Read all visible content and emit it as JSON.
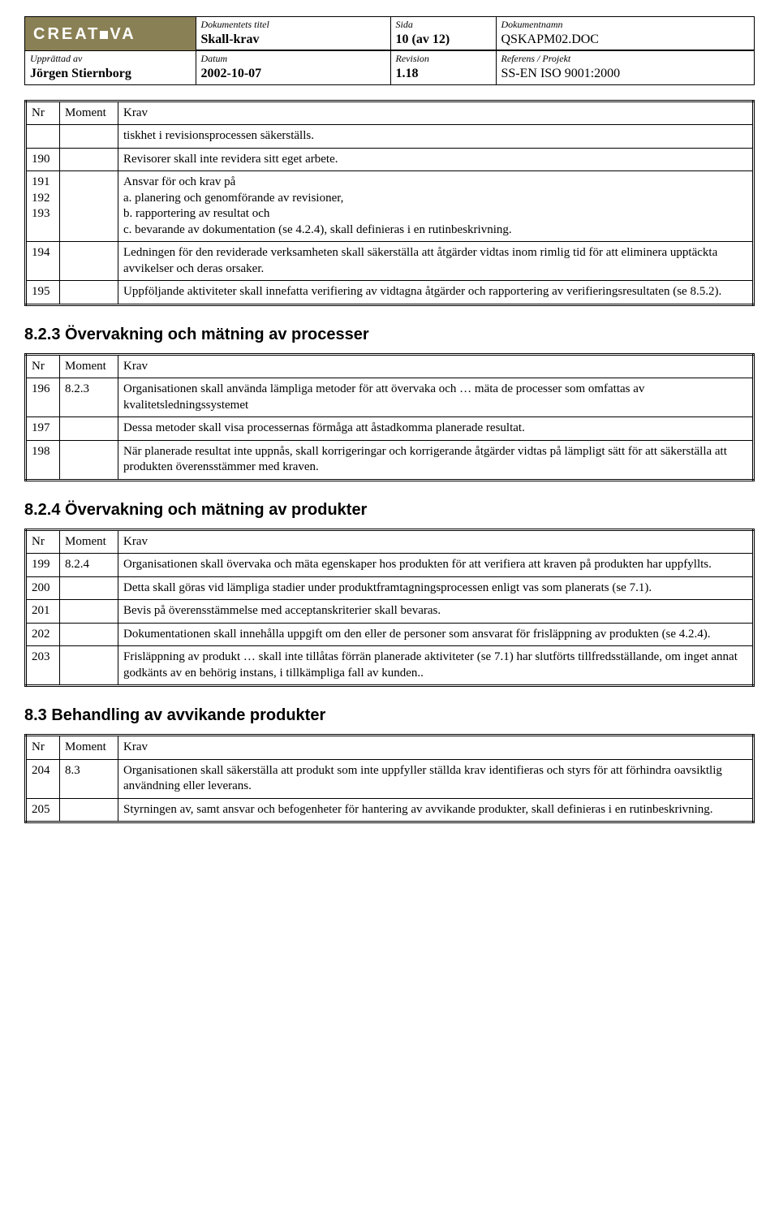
{
  "header": {
    "logo_text": "CREAT VA",
    "col_titles": {
      "title_label": "Dokumentets titel",
      "page_label": "Sida",
      "docname_label": "Dokumentnamn",
      "author_label": "Upprättad av",
      "date_label": "Datum",
      "revision_label": "Revision",
      "reference_label": "Referens / Projekt"
    },
    "title_value": "Skall-krav",
    "page_value": "10 (av 12)",
    "docname_value": "QSKAPM02.DOC",
    "author_value": "Jörgen Stiernborg",
    "date_value": "2002-10-07",
    "revision_value": "1.18",
    "reference_value": "SS-EN ISO 9001:2000"
  },
  "columns": {
    "nr": "Nr",
    "moment": "Moment",
    "krav": "Krav"
  },
  "table1": {
    "rows": [
      {
        "nr": "",
        "moment": "",
        "krav": "tiskhet i revisionsprocessen säkerställs."
      },
      {
        "nr": "190",
        "moment": "",
        "krav": "Revisorer skall inte revidera sitt eget arbete."
      },
      {
        "nr": "191\n192\n193",
        "moment": "",
        "krav": "Ansvar för och krav på\na. planering och genomförande av revisioner,\nb. rapportering av resultat och\nc. bevarande av dokumentation (se 4.2.4), skall definieras i en rutinbeskrivning."
      },
      {
        "nr": "194",
        "moment": "",
        "krav": "Ledningen för den reviderade verksamheten skall säkerställa att åtgärder vidtas inom rimlig tid för att eliminera upptäckta avvikelser och deras orsaker."
      },
      {
        "nr": "195",
        "moment": "",
        "krav": "Uppföljande aktiviteter skall innefatta verifiering av vidtagna åtgärder och rapportering av verifieringsresultaten (se 8.5.2)."
      }
    ]
  },
  "section823": {
    "title": "8.2.3 Övervakning och mätning av processer"
  },
  "table2": {
    "rows": [
      {
        "nr": "196",
        "moment": "8.2.3",
        "krav": "Organisationen skall använda lämpliga metoder för att övervaka och … mäta de processer som omfattas av kvalitetsledningssystemet"
      },
      {
        "nr": "197",
        "moment": "",
        "krav": "Dessa metoder skall visa processernas förmåga att åstadkomma planerade resultat."
      },
      {
        "nr": "198",
        "moment": "",
        "krav": "När planerade resultat inte uppnås, skall korrigeringar och korrigerande åtgärder vidtas på lämpligt sätt för att säkerställa att produkten överensstämmer med kraven."
      }
    ]
  },
  "section824": {
    "title": "8.2.4 Övervakning och mätning av produkter"
  },
  "table3": {
    "rows": [
      {
        "nr": "199",
        "moment": "8.2.4",
        "krav": "Organisationen skall övervaka och mäta egenskaper hos produkten för att verifiera att kraven på produkten har uppfyllts."
      },
      {
        "nr": "200",
        "moment": "",
        "krav": "Detta skall göras vid lämpliga stadier under produktframtagningsprocessen enligt vas som planerats (se 7.1)."
      },
      {
        "nr": "201",
        "moment": "",
        "krav": "Bevis på överensstämmelse med acceptanskriterier skall bevaras."
      },
      {
        "nr": "202",
        "moment": "",
        "krav": "Dokumentationen skall innehålla uppgift om den eller de personer som ansvarat för frisläppning av produkten (se 4.2.4)."
      },
      {
        "nr": "203",
        "moment": "",
        "krav": "Frisläppning av produkt … skall inte tillåtas förrän planerade aktiviteter (se 7.1) har slutförts tillfredsställande, om inget annat godkänts av en behörig instans, i tillkämpliga fall av kunden.."
      }
    ]
  },
  "section83": {
    "title": "8.3 Behandling av avvikande produkter"
  },
  "table4": {
    "rows": [
      {
        "nr": "204",
        "moment": "8.3",
        "krav": "Organisationen skall säkerställa att produkt som inte uppfyller ställda krav identifieras och styrs för att förhindra oavsiktlig användning eller leverans."
      },
      {
        "nr": "205",
        "moment": "",
        "krav": "Styrningen av, samt ansvar och befogenheter för hantering av avvikande produkter, skall definieras i en rutinbeskrivning."
      }
    ]
  }
}
